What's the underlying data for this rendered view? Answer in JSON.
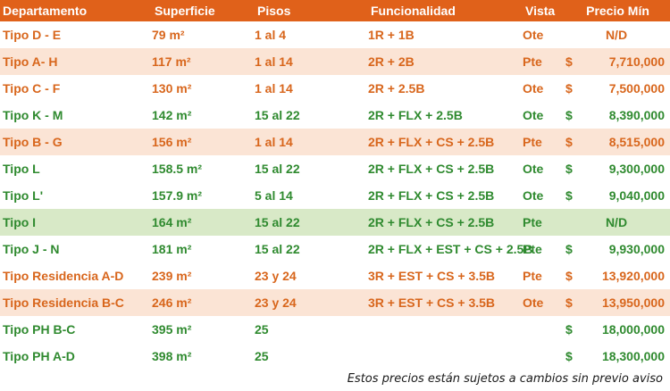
{
  "colors": {
    "header_bg": "#e0611a",
    "header_text": "#ffffff",
    "orange_text": "#d8661c",
    "green_text": "#2f8a2f",
    "band_peach": "#fbe4d5",
    "band_green": "#d8e9c7",
    "band_white": "#ffffff"
  },
  "header": {
    "departamento": "Departamento",
    "superficie": "Superficie",
    "pisos": "Pisos",
    "funcionalidad": "Funcionalidad",
    "vista": "Vista",
    "precio": "Precio Mín"
  },
  "rows": [
    {
      "dept": "Tipo D - E",
      "sup": "79 m²",
      "pisos": "1 al 4",
      "func": "1R + 1B",
      "vista": "Ote",
      "cur": "",
      "price": "N/D",
      "color": "orange",
      "band": "white",
      "price_center": true
    },
    {
      "dept": "Tipo A- H",
      "sup": "117 m²",
      "pisos": "1 al 14",
      "func": "2R + 2B",
      "vista": "Pte",
      "cur": "$",
      "price": "7,710,000",
      "color": "orange",
      "band": "peach",
      "price_center": false
    },
    {
      "dept": "Tipo C - F",
      "sup": "130 m²",
      "pisos": "1 al 14",
      "func": "2R + 2.5B",
      "vista": "Ote",
      "cur": "$",
      "price": "7,500,000",
      "color": "orange",
      "band": "white",
      "price_center": false
    },
    {
      "dept": "Tipo K - M",
      "sup": "142 m²",
      "pisos": "15 al 22",
      "func": "2R + FLX + 2.5B",
      "vista": "Ote",
      "cur": "$",
      "price": "8,390,000",
      "color": "green",
      "band": "white",
      "price_center": false
    },
    {
      "dept": "Tipo B - G",
      "sup": "156 m²",
      "pisos": "1 al 14",
      "func": "2R + FLX + CS + 2.5B",
      "vista": "Pte",
      "cur": "$",
      "price": "8,515,000",
      "color": "orange",
      "band": "peach",
      "price_center": false
    },
    {
      "dept": "Tipo L",
      "sup": "158.5 m²",
      "pisos": "15 al 22",
      "func": "2R + FLX + CS + 2.5B",
      "vista": "Ote",
      "cur": "$",
      "price": "9,300,000",
      "color": "green",
      "band": "white",
      "price_center": false
    },
    {
      "dept": "Tipo L'",
      "sup": "157.9 m²",
      "pisos": "5 al 14",
      "func": "2R + FLX + CS + 2.5B",
      "vista": "Ote",
      "cur": "$",
      "price": "9,040,000",
      "color": "green",
      "band": "white",
      "price_center": false
    },
    {
      "dept": "Tipo I",
      "sup": "164 m²",
      "pisos": "15 al 22",
      "func": "2R + FLX + CS + 2.5B",
      "vista": "Pte",
      "cur": "",
      "price": "N/D",
      "color": "green",
      "band": "green",
      "price_center": true
    },
    {
      "dept": "Tipo J - N",
      "sup": "181 m²",
      "pisos": "15 al 22",
      "func": "2R + FLX + EST + CS + 2.5B",
      "vista": "Pte",
      "cur": "$",
      "price": "9,930,000",
      "color": "green",
      "band": "white",
      "price_center": false
    },
    {
      "dept": "Tipo Residencia A-D",
      "sup": "239 m²",
      "pisos": "23 y 24",
      "func": "3R + EST + CS + 3.5B",
      "vista": "Pte",
      "cur": "$",
      "price": "13,920,000",
      "color": "orange",
      "band": "white",
      "price_center": false
    },
    {
      "dept": "Tipo Residencia B-C",
      "sup": "246 m²",
      "pisos": "23 y 24",
      "func": "3R + EST + CS + 3.5B",
      "vista": "Ote",
      "cur": "$",
      "price": "13,950,000",
      "color": "orange",
      "band": "peach",
      "price_center": false
    },
    {
      "dept": "Tipo PH B-C",
      "sup": "395 m²",
      "pisos": "25",
      "func": "",
      "vista": "",
      "cur": "$",
      "price": "18,000,000",
      "color": "green",
      "band": "white",
      "price_center": false
    },
    {
      "dept": "Tipo PH A-D",
      "sup": "398 m²",
      "pisos": "25",
      "func": "",
      "vista": "",
      "cur": "$",
      "price": "18,300,000",
      "color": "green",
      "band": "white",
      "price_center": false
    }
  ],
  "footnote": "Estos precios están sujetos a cambios sin previo aviso"
}
